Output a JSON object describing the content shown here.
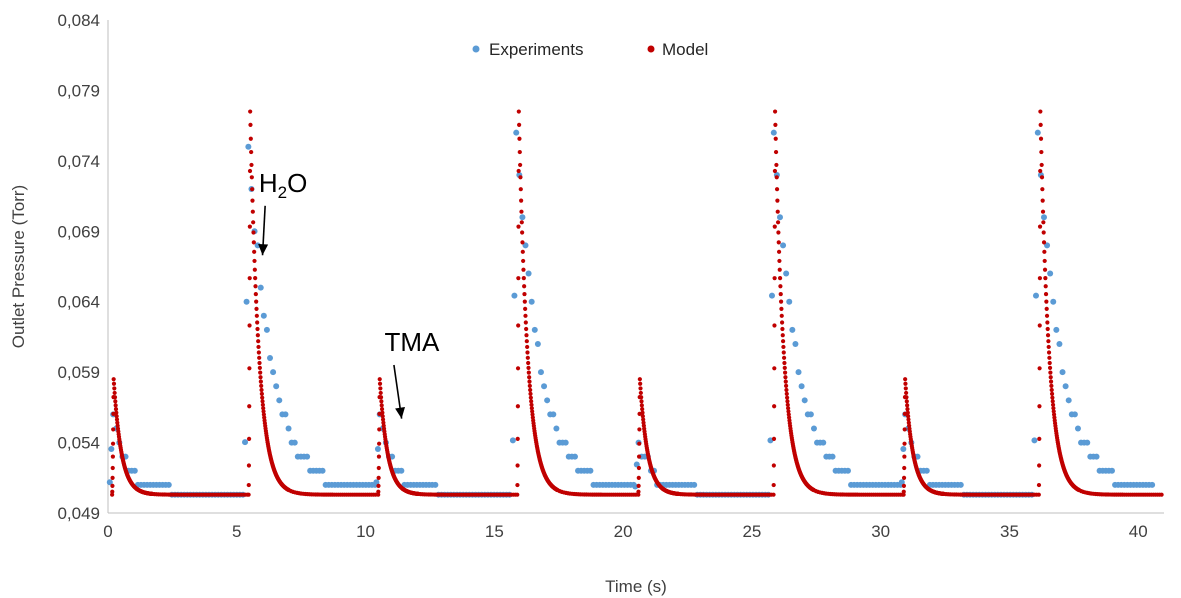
{
  "chart_data": {
    "type": "scatter",
    "title": "",
    "xlabel": "Time (s)",
    "ylabel": "Outlet Pressure (Torr)",
    "xlim": [
      0,
      41
    ],
    "ylim": [
      0.049,
      0.084
    ],
    "xticks": [
      0,
      5,
      10,
      15,
      20,
      25,
      30,
      35,
      40
    ],
    "xtick_labels": [
      "0",
      "5",
      "10",
      "15",
      "20",
      "25",
      "30",
      "35",
      "40"
    ],
    "yticks": [
      0.049,
      0.054,
      0.059,
      0.064,
      0.069,
      0.074,
      0.079,
      0.084
    ],
    "ytick_labels": [
      "0,049",
      "0,054",
      "0,059",
      "0,064",
      "0,069",
      "0,074",
      "0,079",
      "0,084"
    ],
    "grid": false,
    "legend_position": "top-center",
    "baseline": 0.0503,
    "colors": {
      "experiments": "#5b9bd5",
      "model": "#c00000"
    },
    "series": [
      {
        "name": "Experiments",
        "pulse_starts": [
          0.2,
          5.45,
          10.55,
          15.85,
          20.6,
          25.85,
          30.95,
          36.1
        ],
        "peaks": [
          0.0562,
          0.0752,
          0.0562,
          0.076,
          0.0542,
          0.076,
          0.0562,
          0.076
        ],
        "pulse_gas": [
          "TMA",
          "H2O",
          "TMA",
          "H2O",
          "TMA",
          "H2O",
          "TMA",
          "H2O"
        ]
      },
      {
        "name": "Model",
        "pulse_starts": [
          0.22,
          5.52,
          10.55,
          15.95,
          20.65,
          25.9,
          30.95,
          36.2
        ],
        "peaks": [
          0.0585,
          0.0775,
          0.0585,
          0.0775,
          0.0585,
          0.0775,
          0.0585,
          0.0775
        ],
        "pulse_gas": [
          "TMA",
          "H2O",
          "TMA",
          "H2O",
          "TMA",
          "H2O",
          "TMA",
          "H2O"
        ]
      }
    ],
    "annotations": [
      {
        "text": "H",
        "sub": "2",
        "text_after": "O",
        "x": 6.8,
        "y": 0.0718,
        "arrow_to": [
          6.0,
          0.0673
        ]
      },
      {
        "text": "TMA",
        "x": 11.8,
        "y": 0.0605,
        "arrow_to": [
          11.4,
          0.0557
        ]
      }
    ]
  }
}
